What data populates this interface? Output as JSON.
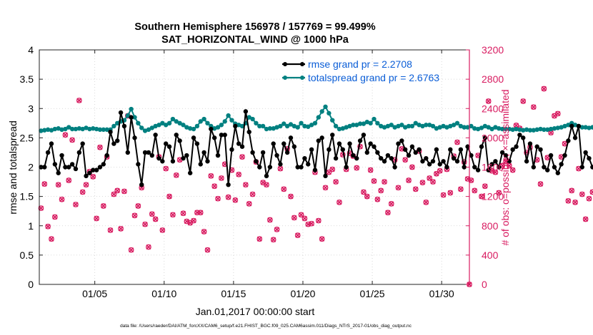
{
  "figure": {
    "title_line1": "Southern Hemisphere 156978 / 157769 = 99.499%",
    "title_line2": "SAT_HORIZONTAL_WIND @ 1000 hPa",
    "footer": "data file: /Users/raeder/DAI/ATM_forcXX/CAM6_setup/f.e21.FHIST_BGC.f09_025.CAM6assim.011/Diags_NTrS_2017-01/obs_diag_output.nc"
  },
  "chart_data": {
    "type": "line",
    "xlabel": "Jan.01,2017 00:00:00 start",
    "ylabel_left": "rmse and totalspread",
    "ylabel_right": "# of obs: o=possible; ×=assimilated",
    "x_unit": "day of Jan 2017 (6-hourly)",
    "xlim": [
      1.0,
      32.0
    ],
    "ylim_left": [
      0,
      4
    ],
    "ylim_right": [
      0,
      3200
    ],
    "x_ticks": [
      5,
      10,
      15,
      20,
      25,
      30
    ],
    "x_tick_labels": [
      "01/05",
      "01/10",
      "01/15",
      "01/20",
      "01/25",
      "01/30"
    ],
    "y_ticks_left": [
      "0",
      "0.5",
      "1",
      "1.5",
      "2",
      "2.5",
      "3",
      "3.5",
      "4"
    ],
    "y_ticks_right": [
      "0",
      "400",
      "800",
      "1200",
      "1600",
      "2000",
      "2400",
      "2800",
      "3200"
    ],
    "grid": true,
    "legend_position": "top-right",
    "colors": {
      "rmse": "#000000",
      "totalspread": "#008080",
      "obs": "#d81b60",
      "legend_text": "#0b5ed7",
      "right_axis": "#d81b60"
    },
    "series": [
      {
        "name": "rmse grand pr = 2.2708",
        "axis": "left",
        "x_start": 1.125,
        "x_step": 0.25,
        "values": [
          2.0,
          2.0,
          2.25,
          2.4,
          2.05,
          1.9,
          2.2,
          2.0,
          2.0,
          2.05,
          1.97,
          2.25,
          2.4,
          1.85,
          1.9,
          1.95,
          1.95,
          2.0,
          2.05,
          2.2,
          2.6,
          2.4,
          2.45,
          2.93,
          2.7,
          2.25,
          2.85,
          2.5,
          2.05,
          1.7,
          2.25,
          2.25,
          2.2,
          2.55,
          2.15,
          2.1,
          2.4,
          2.35,
          2.1,
          2.55,
          2.45,
          2.15,
          2.2,
          1.9,
          2.5,
          2.4,
          2.05,
          2.25,
          2.1,
          2.65,
          2.5,
          2.2,
          2.55,
          2.55,
          1.7,
          2.3,
          2.7,
          2.4,
          2.35,
          2.95,
          2.6,
          2.25,
          2.1,
          2.0,
          2.25,
          1.85,
          2.0,
          2.4,
          2.2,
          2.05,
          2.4,
          2.25,
          2.5,
          2.35,
          2.0,
          2.0,
          2.15,
          2.05,
          2.3,
          1.95,
          2.45,
          2.5,
          1.85,
          2.3,
          2.55,
          2.15,
          2.4,
          2.3,
          2.0,
          2.4,
          2.2,
          2.15,
          2.45,
          2.55,
          2.25,
          2.4,
          2.35,
          2.25,
          2.15,
          2.1,
          2.2,
          2.15,
          2.0,
          2.4,
          2.45,
          2.3,
          2.2,
          2.35,
          2.25,
          2.3,
          2.1,
          2.15,
          2.05,
          2.1,
          2.3,
          2.05,
          2.1,
          2.0,
          2.3,
          2.15,
          2.1,
          2.3,
          2.0,
          2.35,
          2.2,
          2.0,
          1.95,
          2.35,
          2.5,
          1.95,
          2.05,
          2.1,
          2.0,
          2.25,
          2.2,
          2.1,
          2.3,
          2.35,
          2.55,
          2.5,
          2.1,
          2.4,
          2.0,
          2.35,
          2.3,
          2.0,
          1.95,
          2.2,
          2.0,
          1.9,
          2.05,
          2.2,
          2.45,
          2.7,
          2.5,
          2.7,
          2.0,
          2.25,
          2.15,
          2.0,
          1.95,
          2.2,
          2.1,
          2.1,
          2.0,
          1.9
        ]
      },
      {
        "name": "totalspread grand pr = 2.6763",
        "axis": "left",
        "x_start": 1.125,
        "x_step": 0.25,
        "values": [
          2.62,
          2.63,
          2.64,
          2.63,
          2.65,
          2.66,
          2.64,
          2.65,
          2.68,
          2.65,
          2.65,
          2.66,
          2.65,
          2.67,
          2.65,
          2.66,
          2.65,
          2.64,
          2.64,
          2.64,
          2.64,
          2.7,
          2.75,
          2.78,
          2.8,
          2.88,
          2.99,
          2.85,
          2.75,
          2.67,
          2.62,
          2.64,
          2.67,
          2.7,
          2.72,
          2.75,
          2.72,
          2.75,
          2.82,
          2.78,
          2.75,
          2.72,
          2.68,
          2.66,
          2.65,
          2.7,
          2.78,
          2.82,
          2.75,
          2.7,
          2.66,
          2.68,
          2.72,
          2.78,
          2.88,
          2.8,
          2.74,
          2.72,
          2.7,
          2.75,
          2.85,
          2.82,
          2.75,
          2.7,
          2.7,
          2.65,
          2.66,
          2.66,
          2.68,
          2.7,
          2.74,
          2.7,
          2.73,
          2.7,
          2.68,
          2.75,
          2.7,
          2.69,
          2.72,
          2.75,
          2.85,
          2.95,
          3.03,
          2.92,
          2.8,
          2.7,
          2.65,
          2.66,
          2.68,
          2.7,
          2.72,
          2.72,
          2.74,
          2.74,
          2.77,
          2.75,
          2.82,
          2.75,
          2.7,
          2.68,
          2.7,
          2.72,
          2.68,
          2.7,
          2.72,
          2.68,
          2.7,
          2.7,
          2.75,
          2.72,
          2.7,
          2.72,
          2.72,
          2.7,
          2.66,
          2.68,
          2.7,
          2.68,
          2.7,
          2.72,
          2.75,
          2.7,
          2.68,
          2.68,
          2.7,
          2.66,
          2.65,
          2.67,
          2.7,
          2.68,
          2.65,
          2.68,
          2.66,
          2.65,
          2.65,
          2.65,
          2.64,
          2.65,
          2.64,
          2.63,
          2.64,
          2.63,
          2.63,
          2.64,
          2.65,
          2.64,
          2.64,
          2.65,
          2.66,
          2.67,
          2.68,
          2.7,
          2.72,
          2.75,
          2.72,
          2.7,
          2.68,
          2.68,
          2.67,
          2.68,
          2.66,
          2.65,
          2.64,
          2.63
        ]
      },
      {
        "name": "# of obs possible / assimilated",
        "axis": "right",
        "x_start": 1.125,
        "x_step": 0.25,
        "values": [
          1040,
          1370,
          790,
          620,
          920,
          1360,
          1160,
          2040,
          1420,
          1970,
          1090,
          2510,
          1260,
          1360,
          1540,
          1470,
          900,
          1870,
          1070,
          1740,
          740,
          1230,
          1280,
          760,
          1270,
          2300,
          470,
          940,
          1070,
          1320,
          820,
          510,
          960,
          890,
          1740,
          740,
          1580,
          1200,
          950,
          1490,
          1700,
          970,
          860,
          840,
          870,
          980,
          980,
          720,
          470,
          1480,
          1340,
          1170,
          1450,
          1640,
          1190,
          1560,
          1150,
          1500,
          1740,
          1360,
          1100,
          1230,
          1670,
          620,
          1390,
          1360,
          880,
          610,
          750,
          1580,
          1300,
          1850,
          1200,
          910,
          670,
          950,
          900,
          820,
          830,
          1530,
          870,
          620,
          1320,
          1530,
          1570,
          1400,
          1120,
          1770,
          1570,
          1790,
          1750,
          1590,
          1880,
          1260,
          1200,
          1560,
          1410,
          1160,
          1280,
          1400,
          980,
          1100,
          1700,
          1320,
          1850,
          1700,
          1420,
          1600,
          1300,
          1820,
          1390,
          1120,
          1450,
          1400,
          1510,
          1550,
          1220,
          1570,
          1250,
          1750,
          1940,
          1300,
          1670,
          1440,
          1420,
          1280,
          1760,
          1200,
          1340,
          2500,
          1550,
          1530,
          1250,
          1620,
          1680,
          1620,
          1560,
          2170,
          2130,
          2500,
          1800,
          1870,
          2420,
          1700,
          1370,
          2670,
          1730,
          2070,
          2300,
          2330,
          1740,
          1920,
          1140,
          1280,
          1120,
          1580,
          1230,
          890,
          1170,
          1260,
          1310,
          1070,
          800,
          800
        ]
      }
    ],
    "end_marker": {
      "x": 32.0,
      "value": 0
    }
  }
}
